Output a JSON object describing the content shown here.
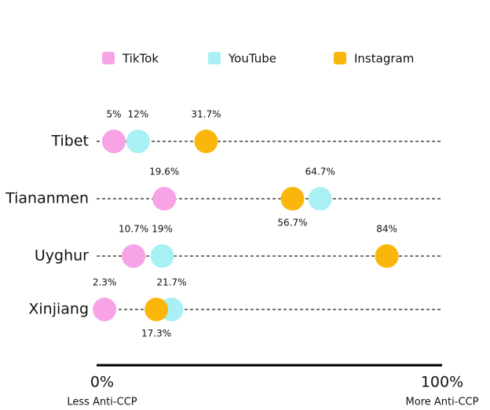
{
  "chart_data": {
    "type": "dot",
    "categories": [
      "Tibet",
      "Tiananmen",
      "Uyghur",
      "Xinjiang"
    ],
    "series": [
      {
        "name": "TikTok",
        "color": "#f7a3e6",
        "values": [
          5,
          19.6,
          10.7,
          2.3
        ],
        "value_labels": [
          "5%",
          "19.6%",
          "10.7%",
          "2.3%"
        ]
      },
      {
        "name": "YouTube",
        "color": "#a8f0f4",
        "values": [
          12,
          64.7,
          19,
          21.7
        ],
        "value_labels": [
          "12%",
          "64.7%",
          "19%",
          "21.7%"
        ]
      },
      {
        "name": "Instagram",
        "color": "#fbb60c",
        "values": [
          31.7,
          56.7,
          84,
          17.3
        ],
        "value_labels": [
          "31.7%",
          "56.7%",
          "84%",
          "17.3%"
        ]
      }
    ],
    "xlim": [
      0,
      100
    ],
    "xticks": [
      {
        "value": 0,
        "label": "0%"
      },
      {
        "value": 100,
        "label": "100%"
      }
    ],
    "annotations": [
      "Less Anti-CCP",
      "More Anti-CCP"
    ]
  }
}
